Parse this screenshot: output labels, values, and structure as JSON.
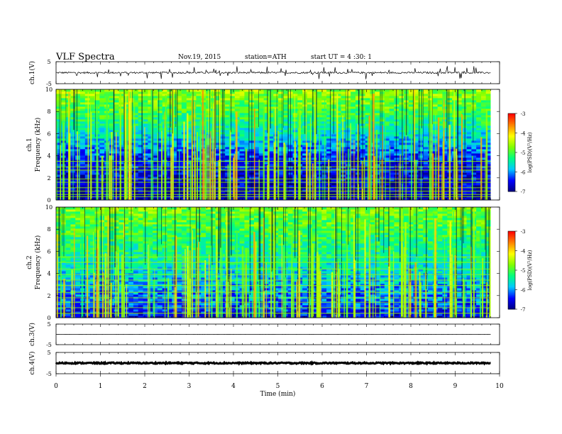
{
  "header": {
    "title": "VLF  Spectra",
    "date": "Nov.19, 2015",
    "station": "station=ATH",
    "start": "start  UT  =   4  :30: 1"
  },
  "chart_data": [
    {
      "type": "line",
      "panel": "ch1-waveform",
      "ylabel": "ch.1(V)",
      "ylim": [
        -5,
        5
      ],
      "yticks": [
        "5",
        "-5"
      ],
      "xlim": [
        0,
        10
      ],
      "series": [
        {
          "mean": 0,
          "noise_amplitude": 0.4,
          "spike_amplitude": 1.8,
          "x_end": 9.8
        }
      ]
    },
    {
      "type": "heatmap",
      "panel": "ch1-spectrogram",
      "ylabel": "ch.1\nFrequency (kHz)",
      "ylim": [
        0,
        10
      ],
      "yticks": [
        "0",
        "2",
        "4",
        "6",
        "8",
        "10"
      ],
      "xlim": [
        0,
        10
      ],
      "x_end": 9.8,
      "colorbar": {
        "label": "log(PSD)(V²/Hz)",
        "range": [
          -7,
          -3
        ],
        "ticks": [
          "-3",
          "-4",
          "-5",
          "-6",
          "-7"
        ]
      },
      "background_level_by_freq_khz": [
        [
          0,
          -6.9
        ],
        [
          1,
          -6.7
        ],
        [
          2,
          -6.6
        ],
        [
          3,
          -6.5
        ],
        [
          4,
          -6.3
        ],
        [
          5,
          -5.9
        ],
        [
          6,
          -5.6
        ],
        [
          7,
          -5.3
        ],
        [
          8,
          -5.0
        ],
        [
          9,
          -4.8
        ],
        [
          10,
          -4.6
        ]
      ],
      "tonal_lines_khz": [
        0.3,
        0.5,
        0.8,
        1.1,
        1.6,
        1.9,
        2.7,
        3.0,
        3.5
      ],
      "burst_level": -4.4
    },
    {
      "type": "heatmap",
      "panel": "ch2-spectrogram",
      "ylabel": "ch.2\nFrequency (kHz)",
      "ylim": [
        0,
        10
      ],
      "yticks": [
        "0",
        "2",
        "4",
        "6",
        "8",
        "10"
      ],
      "xlim": [
        0,
        10
      ],
      "x_end": 9.8,
      "colorbar": {
        "label": "log(PSD)(V²/Hz)",
        "range": [
          -7,
          -3
        ],
        "ticks": [
          "-3",
          "-4",
          "-5",
          "-6",
          "-7"
        ]
      },
      "background_level_by_freq_khz": [
        [
          0,
          -6.6
        ],
        [
          1,
          -6.3
        ],
        [
          2,
          -6.1
        ],
        [
          3,
          -5.9
        ],
        [
          4,
          -5.7
        ],
        [
          5,
          -5.5
        ],
        [
          6,
          -5.3
        ],
        [
          7,
          -5.2
        ],
        [
          8,
          -5.0
        ],
        [
          9,
          -4.9
        ],
        [
          10,
          -4.7
        ]
      ],
      "tonal_lines_khz": [
        0.4,
        0.9,
        1.4,
        1.8,
        2.3,
        2.9,
        3.4,
        3.9,
        4.4,
        5.0,
        5.5
      ],
      "burst_level": -4.5
    },
    {
      "type": "line",
      "panel": "ch3-waveform",
      "ylabel": "ch.3(V)",
      "ylim": [
        -5,
        5
      ],
      "yticks": [
        "5",
        "-5"
      ],
      "xlim": [
        0,
        10
      ],
      "series": [
        {
          "mean": 0,
          "noise_amplitude": 0.05,
          "spike_amplitude": 0,
          "x_end": 9.8
        }
      ]
    },
    {
      "type": "line",
      "panel": "ch4-waveform",
      "ylabel": "ch.4(V)",
      "ylim": [
        -5,
        5
      ],
      "yticks": [
        "5",
        "-5"
      ],
      "xlim": [
        0,
        10
      ],
      "series": [
        {
          "mean": 0,
          "noise_amplitude": 0.3,
          "spike_amplitude": 0,
          "x_end": 9.8
        }
      ]
    }
  ],
  "x_axis": {
    "label": "Time  (min)",
    "ticks": [
      "0",
      "1",
      "2",
      "3",
      "4",
      "5",
      "6",
      "7",
      "8",
      "9",
      "10"
    ],
    "range": [
      0,
      10
    ]
  },
  "colors": {
    "colormap": [
      "#000080",
      "#0000ff",
      "#00c8ff",
      "#00ff80",
      "#80ff00",
      "#ffff00",
      "#ff8000",
      "#ff0000",
      "#ffffff"
    ]
  }
}
